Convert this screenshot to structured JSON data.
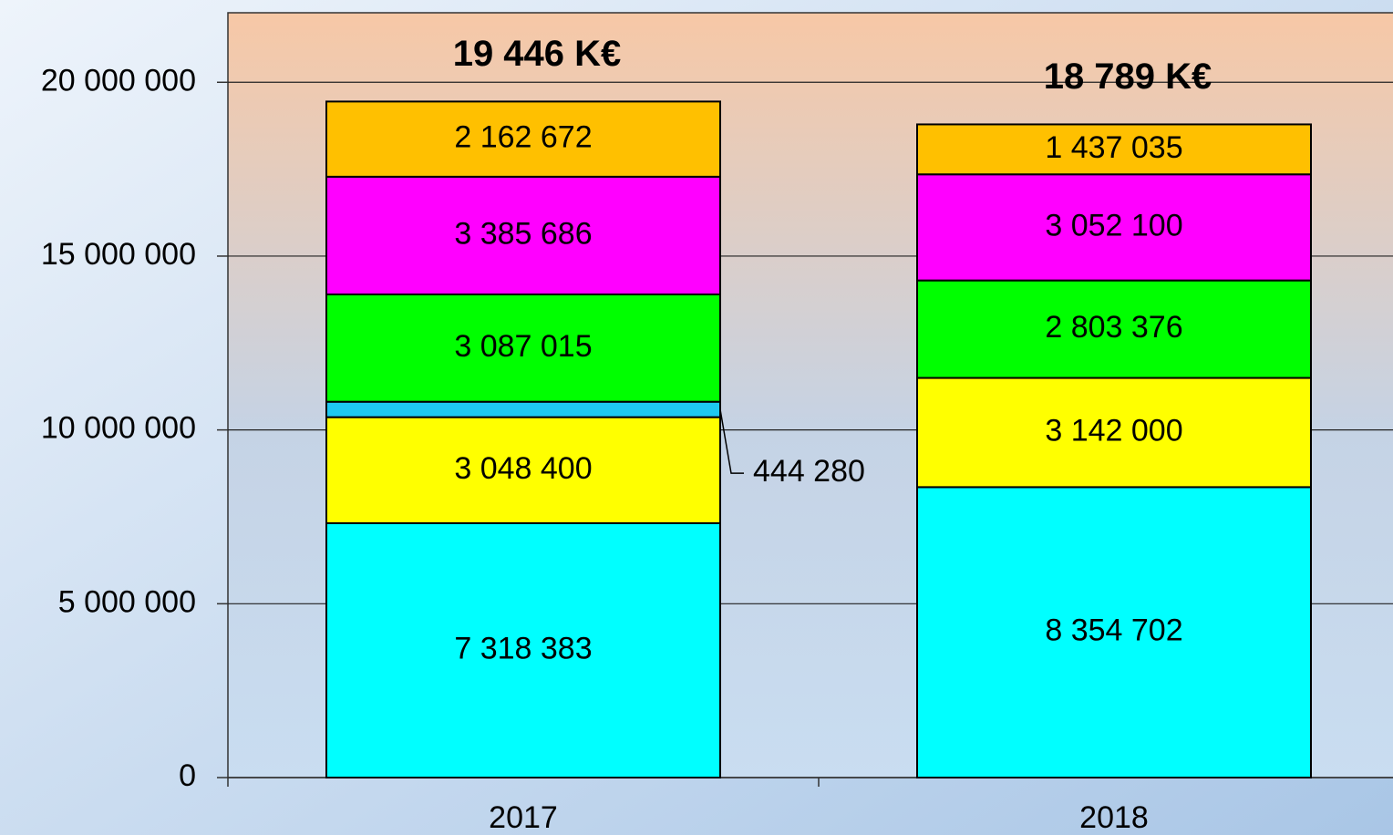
{
  "chart_data": {
    "type": "stacked_bar",
    "categories": [
      "2017",
      "2018"
    ],
    "series": [
      {
        "color": "#00ffff",
        "values": [
          7318383,
          8354702
        ],
        "value_labels": [
          "7 318 383",
          "8 354 702"
        ]
      },
      {
        "color": "#ffff00",
        "values": [
          3048400,
          3142000
        ],
        "value_labels": [
          "3 048 400",
          "3 142 000"
        ]
      },
      {
        "color": "#1ec8f0",
        "values": [
          444280,
          null
        ],
        "value_labels": [
          "444 280",
          null
        ]
      },
      {
        "color": "#00ff00",
        "values": [
          3087015,
          2803376
        ],
        "value_labels": [
          "3 087 015",
          "2 803 376"
        ]
      },
      {
        "color": "#ff00ff",
        "values": [
          3385686,
          3052100
        ],
        "value_labels": [
          "3 385 686",
          "3 052 100"
        ]
      },
      {
        "color": "#ffc000",
        "values": [
          2162672,
          1437035
        ],
        "value_labels": [
          "2 162 672",
          "1 437 035"
        ]
      }
    ],
    "total_labels": [
      "19 446 K€",
      "18 789 K€"
    ],
    "ylim": [
      0,
      22000000
    ],
    "yticks": [
      0,
      {
        "value": 5000000,
        "label": "5 000 000"
      },
      {
        "value": 10000000,
        "label": "10 000 000"
      },
      {
        "value": 15000000,
        "label": "15 000 000"
      },
      {
        "value": 20000000,
        "label": "20 000 000"
      }
    ],
    "grid": true
  }
}
